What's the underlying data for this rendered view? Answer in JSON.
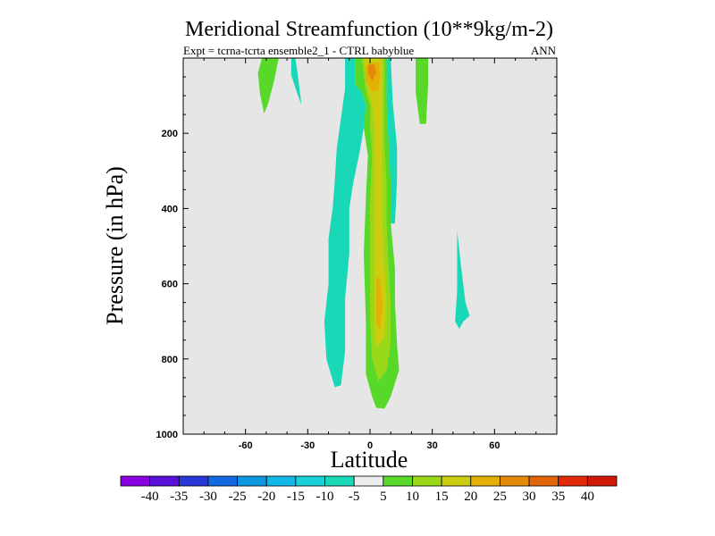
{
  "chart_data": {
    "type": "contour",
    "title": "Meridional Streamfunction (10**9kg/m-2)",
    "subtitle_left": "Expt = tcrna-tcrta   ensemble2_1 - CTRL babyblue",
    "subtitle_right": "ANN",
    "xlabel": "Latitude",
    "ylabel": "Pressure (in hPa)",
    "xlim": [
      -90,
      90
    ],
    "ylim": [
      1000,
      0
    ],
    "x_ticks": [
      -60,
      -30,
      0,
      30,
      60
    ],
    "x_tick_labels": [
      "-60",
      "-30",
      "0",
      "30",
      "60"
    ],
    "y_ticks": [
      200,
      400,
      600,
      800,
      1000
    ],
    "y_tick_labels": [
      "200",
      "400",
      "600",
      "800",
      "1000"
    ],
    "plot_background": "#e6e6e6",
    "levels": [
      "-40",
      "-35",
      "-30",
      "-25",
      "-20",
      "-15",
      "-10",
      "-5",
      "5",
      "10",
      "15",
      "20",
      "25",
      "30",
      "35",
      "40"
    ],
    "colors": [
      "#8a00e0",
      "#5a10d8",
      "#2838d8",
      "#1468e0",
      "#0c98e0",
      "#10b8e8",
      "#18d0d8",
      "#18d8b8",
      "#ececec",
      "#58d828",
      "#98d818",
      "#cccc10",
      "#e4b008",
      "#e48a08",
      "#e06408",
      "#e02a08",
      "#d01808"
    ],
    "filled_regions": [
      {
        "label": "-5 to -10",
        "level_index": 7,
        "outline": [
          [
            -38,
            0
          ],
          [
            -36,
            0
          ],
          [
            -35,
            35
          ],
          [
            -34,
            80
          ],
          [
            -33,
            125
          ],
          [
            -35,
            95
          ],
          [
            -38,
            45
          ],
          [
            -38,
            15
          ]
        ]
      },
      {
        "label": "-5 to -10",
        "level_index": 7,
        "outline": [
          [
            -12,
            0
          ],
          [
            -7,
            0
          ],
          [
            -7,
            70
          ],
          [
            -4,
            90
          ],
          [
            -2,
            125
          ],
          [
            -3,
            185
          ],
          [
            -5,
            250
          ],
          [
            -8,
            330
          ],
          [
            -10,
            400
          ],
          [
            -10,
            520
          ],
          [
            -12,
            640
          ],
          [
            -12,
            780
          ],
          [
            -14,
            870
          ],
          [
            -17,
            875
          ],
          [
            -21,
            800
          ],
          [
            -22,
            700
          ],
          [
            -20,
            600
          ],
          [
            -20,
            480
          ],
          [
            -18,
            400
          ],
          [
            -17,
            330
          ],
          [
            -16,
            240
          ],
          [
            -14,
            160
          ],
          [
            -12,
            80
          ]
        ]
      },
      {
        "label": "-5 to -10",
        "level_index": 7,
        "outline": [
          [
            8,
            0
          ],
          [
            10,
            0
          ],
          [
            11,
            120
          ],
          [
            13,
            235
          ],
          [
            13,
            330
          ],
          [
            12,
            440
          ],
          [
            10,
            440
          ],
          [
            9,
            330
          ],
          [
            9,
            235
          ],
          [
            8,
            120
          ]
        ]
      },
      {
        "label": "-5 to -10",
        "level_index": 7,
        "outline": [
          [
            42,
            460
          ],
          [
            44,
            560
          ],
          [
            46,
            650
          ],
          [
            48,
            685
          ],
          [
            45,
            700
          ],
          [
            43,
            720
          ],
          [
            41,
            700
          ],
          [
            42,
            620
          ]
        ]
      },
      {
        "label": "5 to 10",
        "level_index": 9,
        "outline": [
          [
            -52,
            0
          ],
          [
            -44,
            0
          ],
          [
            -46,
            55
          ],
          [
            -49,
            120
          ],
          [
            -51,
            148
          ],
          [
            -53,
            95
          ],
          [
            -54,
            40
          ]
        ]
      },
      {
        "label": "5 to 10",
        "level_index": 9,
        "outline": [
          [
            22,
            0
          ],
          [
            28,
            0
          ],
          [
            28,
            70
          ],
          [
            27,
            175
          ],
          [
            24,
            175
          ],
          [
            22,
            90
          ]
        ]
      },
      {
        "label": "5 to 10",
        "level_index": 9,
        "outline": [
          [
            -7,
            0
          ],
          [
            8,
            0
          ],
          [
            8,
            120
          ],
          [
            9,
            235
          ],
          [
            10,
            330
          ],
          [
            10,
            440
          ],
          [
            12,
            560
          ],
          [
            12,
            650
          ],
          [
            13,
            760
          ],
          [
            14,
            830
          ],
          [
            10,
            900
          ],
          [
            7,
            932
          ],
          [
            3,
            930
          ],
          [
            1,
            900
          ],
          [
            -2,
            840
          ],
          [
            -2,
            700
          ],
          [
            -3,
            520
          ],
          [
            -2,
            370
          ],
          [
            -1,
            260
          ],
          [
            -3,
            185
          ],
          [
            -2,
            125
          ],
          [
            -4,
            90
          ],
          [
            -7,
            70
          ]
        ]
      },
      {
        "label": "10 to 15",
        "level_index": 10,
        "outline": [
          [
            -4,
            0
          ],
          [
            7,
            0
          ],
          [
            7,
            120
          ],
          [
            7,
            235
          ],
          [
            8,
            330
          ],
          [
            8,
            440
          ],
          [
            9,
            560
          ],
          [
            10,
            650
          ],
          [
            10,
            760
          ],
          [
            8,
            830
          ],
          [
            4,
            860
          ],
          [
            1,
            800
          ],
          [
            0,
            700
          ],
          [
            0,
            520
          ],
          [
            0,
            370
          ],
          [
            1,
            260
          ],
          [
            0,
            185
          ],
          [
            0,
            125
          ],
          [
            -2,
            90
          ]
        ]
      },
      {
        "label": "15 to 20",
        "level_index": 11,
        "outline": [
          [
            -3,
            0
          ],
          [
            6,
            0
          ],
          [
            6,
            120
          ],
          [
            6,
            235
          ],
          [
            6,
            330
          ],
          [
            6,
            440
          ],
          [
            7,
            560
          ],
          [
            8,
            650
          ],
          [
            7,
            740
          ],
          [
            3,
            770
          ],
          [
            2,
            700
          ],
          [
            2,
            520
          ],
          [
            2,
            370
          ],
          [
            2,
            260
          ],
          [
            2,
            185
          ],
          [
            1,
            125
          ],
          [
            -1,
            90
          ]
        ]
      },
      {
        "label": "20 to 25",
        "level_index": 12,
        "outline": [
          [
            -2,
            20
          ],
          [
            4,
            10
          ],
          [
            5,
            40
          ],
          [
            4,
            85
          ],
          [
            1,
            90
          ],
          [
            -2,
            60
          ]
        ]
      },
      {
        "label": "20 to 25",
        "level_index": 12,
        "outline": [
          [
            3,
            580
          ],
          [
            5,
            590
          ],
          [
            6,
            660
          ],
          [
            5,
            720
          ],
          [
            3,
            710
          ],
          [
            3,
            650
          ]
        ]
      },
      {
        "label": "25 to 30",
        "level_index": 13,
        "outline": [
          [
            -1,
            18
          ],
          [
            2,
            15
          ],
          [
            3,
            40
          ],
          [
            1,
            60
          ],
          [
            -1,
            40
          ]
        ]
      }
    ]
  }
}
